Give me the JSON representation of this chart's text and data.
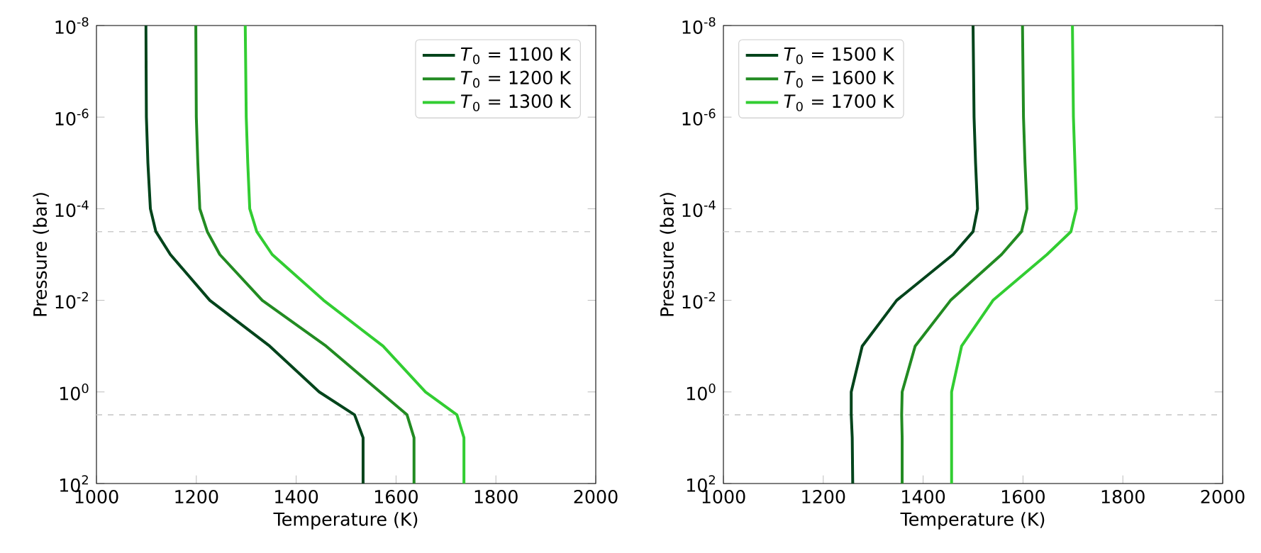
{
  "chart_data": [
    {
      "type": "line",
      "xlabel": "Temperature (K)",
      "ylabel": "Pressure (bar)",
      "log": "y",
      "legend": "top right",
      "grid": false,
      "xlim": [
        1000,
        2000
      ],
      "xticks": [
        1000,
        1200,
        1400,
        1600,
        1800,
        2000
      ],
      "ylim": [
        100,
        1e-08
      ],
      "yticks": [
        {
          "value": 100,
          "label": "10$^{2}$"
        },
        {
          "value": 1,
          "label": "10$^{0}$"
        },
        {
          "value": 0.01,
          "label": "10$^{-2}$"
        },
        {
          "value": 0.0001,
          "label": "10$^{-4}$"
        },
        {
          "value": 1e-06,
          "label": "10$^{-6}$"
        },
        {
          "value": 1e-08,
          "label": "10$^{-8}$"
        }
      ],
      "ref_lines": [
        {
          "axis": "y",
          "value": 0.000316,
          "color": "#cccccc",
          "line_style": "dashed"
        },
        {
          "axis": "y",
          "value": 3.16,
          "color": "#cccccc",
          "line_style": "dashed"
        }
      ],
      "series": [
        {
          "name": "*T*$_{0}$ = 1100 K",
          "color": "#00441b",
          "x": [
            1099,
            1100,
            1103,
            1108,
            1119,
            1148,
            1227,
            1347,
            1446,
            1517,
            1534,
            1534
          ],
          "values": [
            1e-08,
            1e-06,
            1e-05,
            0.0001,
            0.000316,
            0.001,
            0.01,
            0.1,
            1,
            3.16,
            10,
            100
          ]
        },
        {
          "name": "*T*$_{0}$ = 1200 K",
          "color": "#228b22",
          "x": [
            1199,
            1200,
            1203,
            1207,
            1222,
            1247,
            1332,
            1460,
            1568,
            1622,
            1636,
            1636
          ],
          "values": [
            1e-08,
            1e-06,
            1e-05,
            0.0001,
            0.000316,
            0.001,
            0.01,
            0.1,
            1,
            3.16,
            10,
            100
          ]
        },
        {
          "name": "*T*$_{0}$ = 1300 K",
          "color": "#32cd32",
          "x": [
            1298,
            1300,
            1303,
            1307,
            1321,
            1352,
            1455,
            1574,
            1659,
            1722,
            1736,
            1736
          ],
          "values": [
            1e-08,
            1e-06,
            1e-05,
            0.0001,
            0.000316,
            0.001,
            0.01,
            0.1,
            1,
            3.16,
            10,
            100
          ]
        }
      ]
    },
    {
      "type": "line",
      "xlabel": "Temperature (K)",
      "ylabel": "Pressure (bar)",
      "log": "y",
      "legend": "top left",
      "grid": false,
      "xlim": [
        1000,
        2000
      ],
      "xticks": [
        1000,
        1200,
        1400,
        1600,
        1800,
        2000
      ],
      "ylim": [
        100,
        1e-08
      ],
      "yticks": [
        {
          "value": 100,
          "label": "10$^{2}$"
        },
        {
          "value": 1,
          "label": "10$^{0}$"
        },
        {
          "value": 0.01,
          "label": "10$^{-2}$"
        },
        {
          "value": 0.0001,
          "label": "10$^{-4}$"
        },
        {
          "value": 1e-06,
          "label": "10$^{-6}$"
        },
        {
          "value": 1e-08,
          "label": "10$^{-8}$"
        }
      ],
      "ref_lines": [
        {
          "axis": "y",
          "value": 0.000316,
          "color": "#cccccc",
          "line_style": "dashed"
        },
        {
          "axis": "y",
          "value": 3.16,
          "color": "#cccccc",
          "line_style": "dashed"
        }
      ],
      "series": [
        {
          "name": "*T*$_{0}$ = 1500 K",
          "color": "#00441b",
          "x": [
            1500,
            1502,
            1505,
            1509,
            1500,
            1460,
            1347,
            1278,
            1256,
            1256,
            1258,
            1259
          ],
          "values": [
            1e-08,
            1e-06,
            1e-05,
            0.0001,
            0.000316,
            0.001,
            0.01,
            0.1,
            1,
            3.16,
            10,
            100
          ]
        },
        {
          "name": "*T*$_{0}$ = 1600 K",
          "color": "#228b22",
          "x": [
            1599,
            1601,
            1604,
            1608,
            1597,
            1557,
            1455,
            1384,
            1358,
            1357,
            1358,
            1358
          ],
          "values": [
            1e-08,
            1e-06,
            1e-05,
            0.0001,
            0.000316,
            0.001,
            0.01,
            0.1,
            1,
            3.16,
            10,
            100
          ]
        },
        {
          "name": "*T*$_{0}$ = 1700 K",
          "color": "#32cd32",
          "x": [
            1699,
            1701,
            1704,
            1707,
            1696,
            1648,
            1540,
            1477,
            1457,
            1457,
            1457,
            1457
          ],
          "values": [
            1e-08,
            1e-06,
            1e-05,
            0.0001,
            0.000316,
            0.001,
            0.01,
            0.1,
            1,
            3.16,
            10,
            100
          ]
        }
      ]
    }
  ]
}
